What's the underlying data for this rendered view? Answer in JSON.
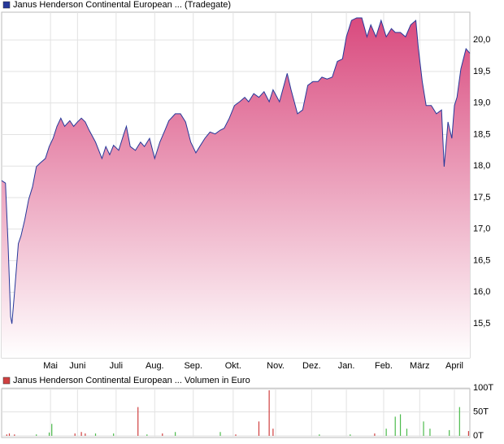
{
  "chart_data": [
    {
      "type": "area",
      "title": "Janus Henderson Continental European ... (Tradegate)",
      "color": "#26389a",
      "fill_colors": [
        "#d94a7e",
        "#ffffff"
      ],
      "legend_color": "#26389a",
      "x": [
        0,
        3,
        5,
        7,
        8,
        10,
        13,
        15,
        18,
        21,
        24,
        27,
        30,
        34,
        37,
        40,
        43,
        46,
        49,
        53,
        56,
        59,
        62,
        65,
        68,
        73,
        78,
        81,
        84,
        87,
        91,
        95,
        97,
        100,
        104,
        108,
        111,
        115,
        119,
        123,
        127,
        130,
        135,
        139,
        143,
        147,
        151,
        154,
        158,
        162,
        166,
        170,
        173,
        177,
        181,
        185,
        189,
        192,
        196,
        200,
        204,
        208,
        211,
        216,
        222,
        225,
        230,
        234,
        238,
        242,
        246,
        249,
        253,
        257,
        261,
        265,
        268,
        272,
        276,
        280,
        284,
        287,
        291,
        295,
        299,
        303,
        306,
        310,
        314,
        318,
        322,
        324,
        327,
        330,
        334,
        338,
        342,
        344,
        347,
        350,
        352,
        354,
        357,
        361,
        364
      ],
      "values": [
        17.77,
        17.73,
        16.77,
        15.61,
        15.5,
        15.99,
        16.77,
        16.89,
        17.15,
        17.47,
        17.67,
        17.99,
        18.05,
        18.12,
        18.31,
        18.44,
        18.63,
        18.76,
        18.63,
        18.72,
        18.63,
        18.7,
        18.76,
        18.7,
        18.57,
        18.38,
        18.12,
        18.31,
        18.18,
        18.33,
        18.25,
        18.51,
        18.63,
        18.31,
        18.25,
        18.38,
        18.31,
        18.44,
        18.12,
        18.38,
        18.57,
        18.72,
        18.83,
        18.83,
        18.7,
        18.38,
        18.21,
        18.31,
        18.44,
        18.54,
        18.51,
        18.57,
        18.6,
        18.76,
        18.96,
        19.02,
        19.09,
        19.02,
        19.15,
        19.09,
        19.18,
        19.02,
        19.21,
        19.02,
        19.47,
        19.21,
        18.83,
        18.89,
        19.28,
        19.34,
        19.34,
        19.41,
        19.38,
        19.41,
        19.66,
        19.7,
        20.05,
        20.31,
        20.35,
        20.35,
        20.05,
        20.24,
        20.05,
        20.31,
        20.05,
        20.18,
        20.12,
        20.12,
        20.05,
        20.24,
        20.31,
        19.86,
        19.34,
        18.96,
        18.96,
        18.83,
        18.89,
        17.99,
        18.7,
        18.44,
        18.96,
        19.09,
        19.54,
        19.86,
        19.79
      ],
      "xlim": [
        0,
        364
      ],
      "ylim": [
        14.96,
        20.44
      ],
      "xticks": [
        {
          "value": 38,
          "label": "Mai"
        },
        {
          "value": 59,
          "label": "Juni"
        },
        {
          "value": 89,
          "label": "Juli"
        },
        {
          "value": 119,
          "label": "Aug."
        },
        {
          "value": 149,
          "label": "Sep."
        },
        {
          "value": 180,
          "label": "Okt."
        },
        {
          "value": 213,
          "label": "Nov."
        },
        {
          "value": 241,
          "label": "Dez."
        },
        {
          "value": 268,
          "label": "Jan."
        },
        {
          "value": 297,
          "label": "Feb."
        },
        {
          "value": 325,
          "label": "März"
        },
        {
          "value": 352,
          "label": "April"
        }
      ],
      "yticks": [
        {
          "value": 15.5,
          "label": "15,5"
        },
        {
          "value": 16,
          "label": "16,0"
        },
        {
          "value": 16.5,
          "label": "16,5"
        },
        {
          "value": 17,
          "label": "17,0"
        },
        {
          "value": 17.5,
          "label": "17,5"
        },
        {
          "value": 18,
          "label": "18,0"
        },
        {
          "value": 18.5,
          "label": "18,5"
        },
        {
          "value": 19,
          "label": "19,0"
        },
        {
          "value": 19.5,
          "label": "19,5"
        },
        {
          "value": 20,
          "label": "20,0"
        }
      ],
      "grid": true
    },
    {
      "type": "bar",
      "title": "Janus Henderson Continental European ... Volumen in Euro",
      "legend_color": "#d04040",
      "x": [
        4,
        6,
        10,
        27,
        37,
        39,
        57,
        62,
        65,
        73,
        87,
        106,
        113,
        125,
        135,
        170,
        182,
        200,
        208,
        211,
        247,
        271,
        290,
        299,
        306,
        310,
        315,
        328,
        333,
        348,
        356,
        363
      ],
      "values": [
        3000,
        5000,
        3000,
        3000,
        7000,
        25000,
        5000,
        8000,
        5000,
        5000,
        5000,
        60000,
        3000,
        5000,
        8000,
        8000,
        3000,
        30000,
        95000,
        15000,
        3000,
        3000,
        5000,
        15000,
        40000,
        45000,
        15000,
        30000,
        15000,
        12000,
        60000,
        10000
      ],
      "colors": [
        "r",
        "r",
        "r",
        "g",
        "g",
        "g",
        "r",
        "r",
        "r",
        "g",
        "g",
        "r",
        "g",
        "r",
        "g",
        "g",
        "r",
        "r",
        "r",
        "r",
        "g",
        "g",
        "r",
        "g",
        "g",
        "g",
        "g",
        "g",
        "g",
        "g",
        "g",
        "r"
      ],
      "palette": {
        "r": "#d04040",
        "g": "#4cbb4c"
      },
      "xlim": [
        0,
        364
      ],
      "ylim": [
        -3400,
        98300
      ],
      "yticks": [
        {
          "value": 0,
          "label": "0T"
        },
        {
          "value": 50000,
          "label": "50T"
        },
        {
          "value": 100000,
          "label": "100T"
        }
      ],
      "grid": true
    }
  ]
}
